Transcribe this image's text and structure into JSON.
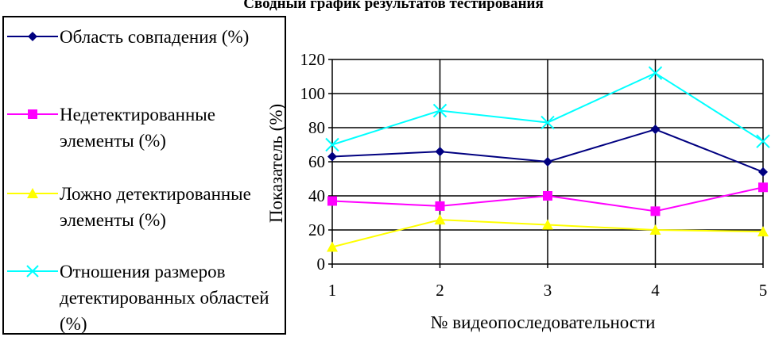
{
  "chart_data": {
    "type": "line",
    "title": "Сводный график результатов тестирования",
    "xlabel": "№ видеопоследовательности",
    "ylabel": "Показатель (%)",
    "categories": [
      "1",
      "2",
      "3",
      "4",
      "5"
    ],
    "y_ticks": [
      "0",
      "20",
      "40",
      "60",
      "80",
      "100",
      "120"
    ],
    "ylim": [
      0,
      120
    ],
    "grid": true,
    "legend_position": "left",
    "series": [
      {
        "name": "Область совпадения (%)",
        "values": [
          63,
          66,
          60,
          79,
          54
        ],
        "color": "#000080",
        "marker": "diamond"
      },
      {
        "name": "Недетектированные элементы (%)",
        "values": [
          37,
          34,
          40,
          31,
          45
        ],
        "color": "#ff00ff",
        "marker": "square"
      },
      {
        "name": "Ложно детектированные элементы (%)",
        "values": [
          10,
          26,
          23,
          20,
          19
        ],
        "color": "#ffff00",
        "marker": "triangle"
      },
      {
        "name": "Отношения размеров детектированных областей (%)",
        "values": [
          70,
          90,
          83,
          112,
          72
        ],
        "color": "#00ffff",
        "marker": "x"
      }
    ]
  }
}
